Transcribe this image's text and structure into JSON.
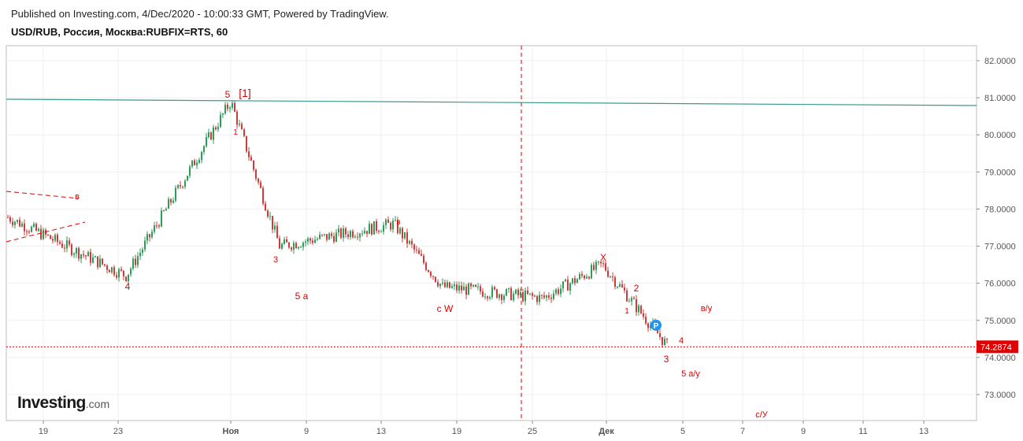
{
  "header": {
    "published": "Published on Investing.com, 4/Dec/2020 - 10:00:33 GMT, Powered by TradingView.",
    "symbol": "USD/RUB, Россия, Москва:RUBFIX=RTS, 60"
  },
  "logo": {
    "main": "Investing",
    "suffix": ".com"
  },
  "chart_data": {
    "type": "line",
    "title": "USD/RUB, Россия, Москва:RUBFIX=RTS, 60",
    "ylim": [
      72.3,
      82.3
    ],
    "y_ticks": [
      "82.0000",
      "81.0000",
      "80.0000",
      "79.0000",
      "78.0000",
      "77.0000",
      "76.0000",
      "75.0000",
      "74.0000",
      "73.0000"
    ],
    "x_ticks": [
      "19",
      "23",
      "Ноя",
      "9",
      "13",
      "19",
      "25",
      "Дек",
      "5",
      "7",
      "9",
      "11",
      "13"
    ],
    "grid": true,
    "last_price": {
      "value": 74.2874,
      "label": "74.2874",
      "color": "#e00000"
    },
    "series": [
      {
        "color": "#2a9d57",
        "x": [
          "19",
          "23",
          "Ноя",
          "9",
          "13",
          "19",
          "25",
          "Дек",
          "5"
        ],
        "values": [
          77.8,
          76.2,
          80.9,
          77.0,
          77.6,
          75.9,
          75.6,
          76.5,
          74.3
        ]
      }
    ],
    "wave_labels": [
      "5",
      "[1]",
      "1",
      "3",
      "4",
      "5 a",
      "в",
      "c W",
      "X",
      "2",
      "1",
      "3",
      "4",
      "5 a/у",
      "в/у",
      "c/У",
      "в"
    ],
    "colors": {
      "candle_up": "#2a9d57",
      "candle_down": "#d03a3a",
      "trendline": "#3a9a8c",
      "annotation": "#e00000",
      "marker": "#2196f3"
    },
    "marker": {
      "label": "P"
    }
  }
}
